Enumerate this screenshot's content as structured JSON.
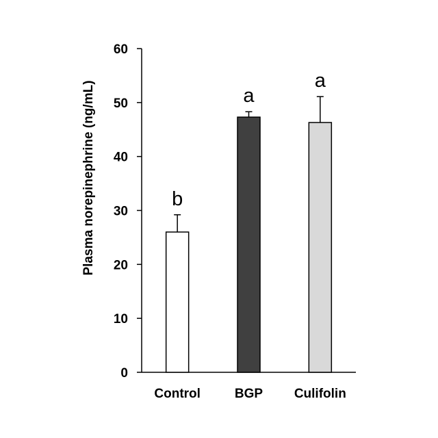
{
  "chart_data": {
    "type": "bar",
    "title": "",
    "xlabel": "",
    "ylabel": "Plasma norepinephrine (ng/mL)",
    "ylim": [
      0,
      60
    ],
    "yticks": [
      0,
      10,
      20,
      30,
      40,
      50,
      60
    ],
    "grid": false,
    "legend": "none",
    "categories": [
      "Control",
      "BGP",
      "Culifolin"
    ],
    "values": [
      26,
      47.3,
      46.3
    ],
    "errors": [
      3.2,
      1.0,
      4.8
    ],
    "significance_letters": [
      "b",
      "a",
      "a"
    ],
    "bar_colors": [
      "#ffffff",
      "#404040",
      "#d9d9d9"
    ],
    "bar_edge_color": "#000000"
  }
}
